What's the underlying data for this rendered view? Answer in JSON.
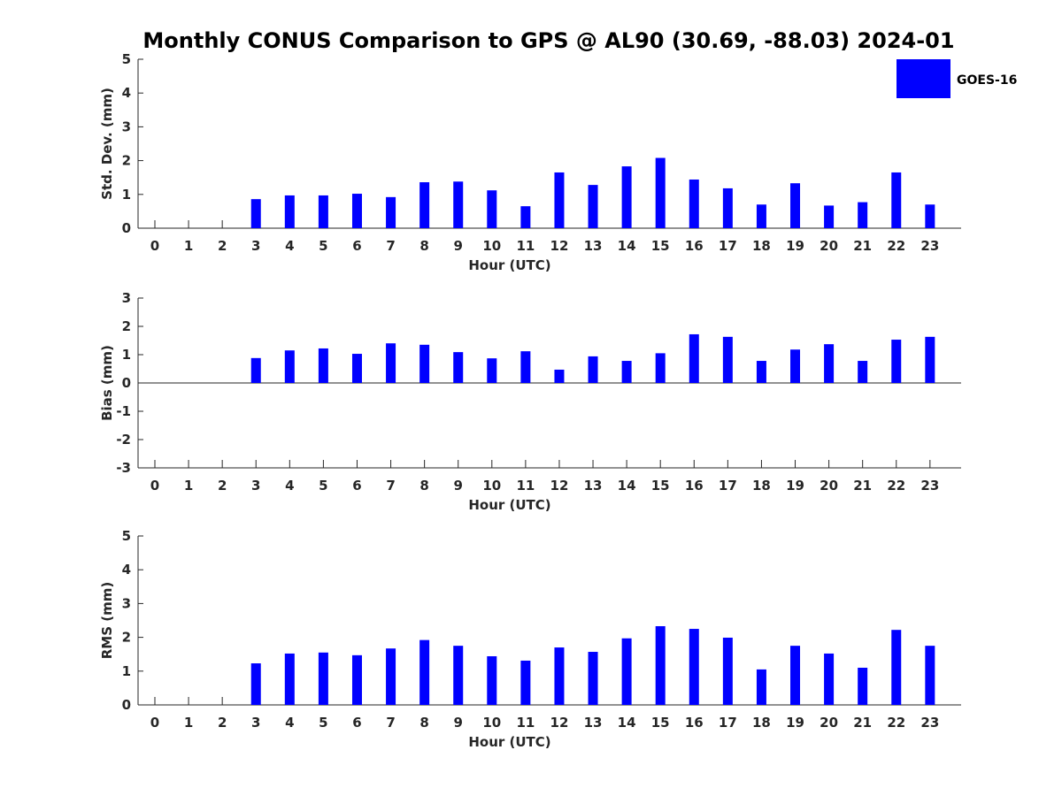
{
  "title": "Monthly CONUS Comparison to GPS @ AL90 (30.69, -88.03) 2024-01",
  "legend": {
    "label": "GOES-16",
    "color": "#0000ff",
    "placement": "top-right"
  },
  "chart_data": [
    {
      "type": "bar",
      "xlabel": "Hour (UTC)",
      "ylabel": "Std. Dev. (mm)",
      "ylim": [
        0,
        5
      ],
      "yticks": [
        0,
        1,
        2,
        3,
        4,
        5
      ],
      "categories": [
        "0",
        "1",
        "2",
        "3",
        "4",
        "5",
        "6",
        "7",
        "8",
        "9",
        "10",
        "11",
        "12",
        "13",
        "14",
        "15",
        "16",
        "17",
        "18",
        "19",
        "20",
        "21",
        "22",
        "23"
      ],
      "series": [
        {
          "name": "GOES-16",
          "values": [
            null,
            null,
            null,
            0.86,
            0.97,
            0.97,
            1.02,
            0.92,
            1.36,
            1.38,
            1.12,
            0.65,
            1.65,
            1.28,
            1.83,
            2.08,
            1.44,
            1.18,
            0.7,
            1.33,
            0.67,
            0.77,
            1.65,
            0.7
          ]
        }
      ]
    },
    {
      "type": "bar",
      "xlabel": "Hour (UTC)",
      "ylabel": "Bias (mm)",
      "ylim": [
        -3,
        3
      ],
      "yticks": [
        -3,
        -2,
        -1,
        0,
        1,
        2,
        3
      ],
      "categories": [
        "0",
        "1",
        "2",
        "3",
        "4",
        "5",
        "6",
        "7",
        "8",
        "9",
        "10",
        "11",
        "12",
        "13",
        "14",
        "15",
        "16",
        "17",
        "18",
        "19",
        "20",
        "21",
        "22",
        "23"
      ],
      "series": [
        {
          "name": "GOES-16",
          "values": [
            null,
            null,
            null,
            0.88,
            1.15,
            1.22,
            1.03,
            1.4,
            1.35,
            1.09,
            0.87,
            1.12,
            0.47,
            0.94,
            0.78,
            1.05,
            1.72,
            1.63,
            0.78,
            1.18,
            1.37,
            0.78,
            1.53,
            1.63
          ]
        }
      ]
    },
    {
      "type": "bar",
      "xlabel": "Hour (UTC)",
      "ylabel": "RMS (mm)",
      "ylim": [
        0,
        5
      ],
      "yticks": [
        0,
        1,
        2,
        3,
        4,
        5
      ],
      "categories": [
        "0",
        "1",
        "2",
        "3",
        "4",
        "5",
        "6",
        "7",
        "8",
        "9",
        "10",
        "11",
        "12",
        "13",
        "14",
        "15",
        "16",
        "17",
        "18",
        "19",
        "20",
        "21",
        "22",
        "23"
      ],
      "series": [
        {
          "name": "GOES-16",
          "values": [
            null,
            null,
            null,
            1.23,
            1.52,
            1.55,
            1.47,
            1.67,
            1.92,
            1.75,
            1.44,
            1.31,
            1.7,
            1.57,
            1.97,
            2.33,
            2.25,
            1.99,
            1.05,
            1.75,
            1.52,
            1.1,
            2.22,
            1.75
          ]
        }
      ]
    }
  ]
}
